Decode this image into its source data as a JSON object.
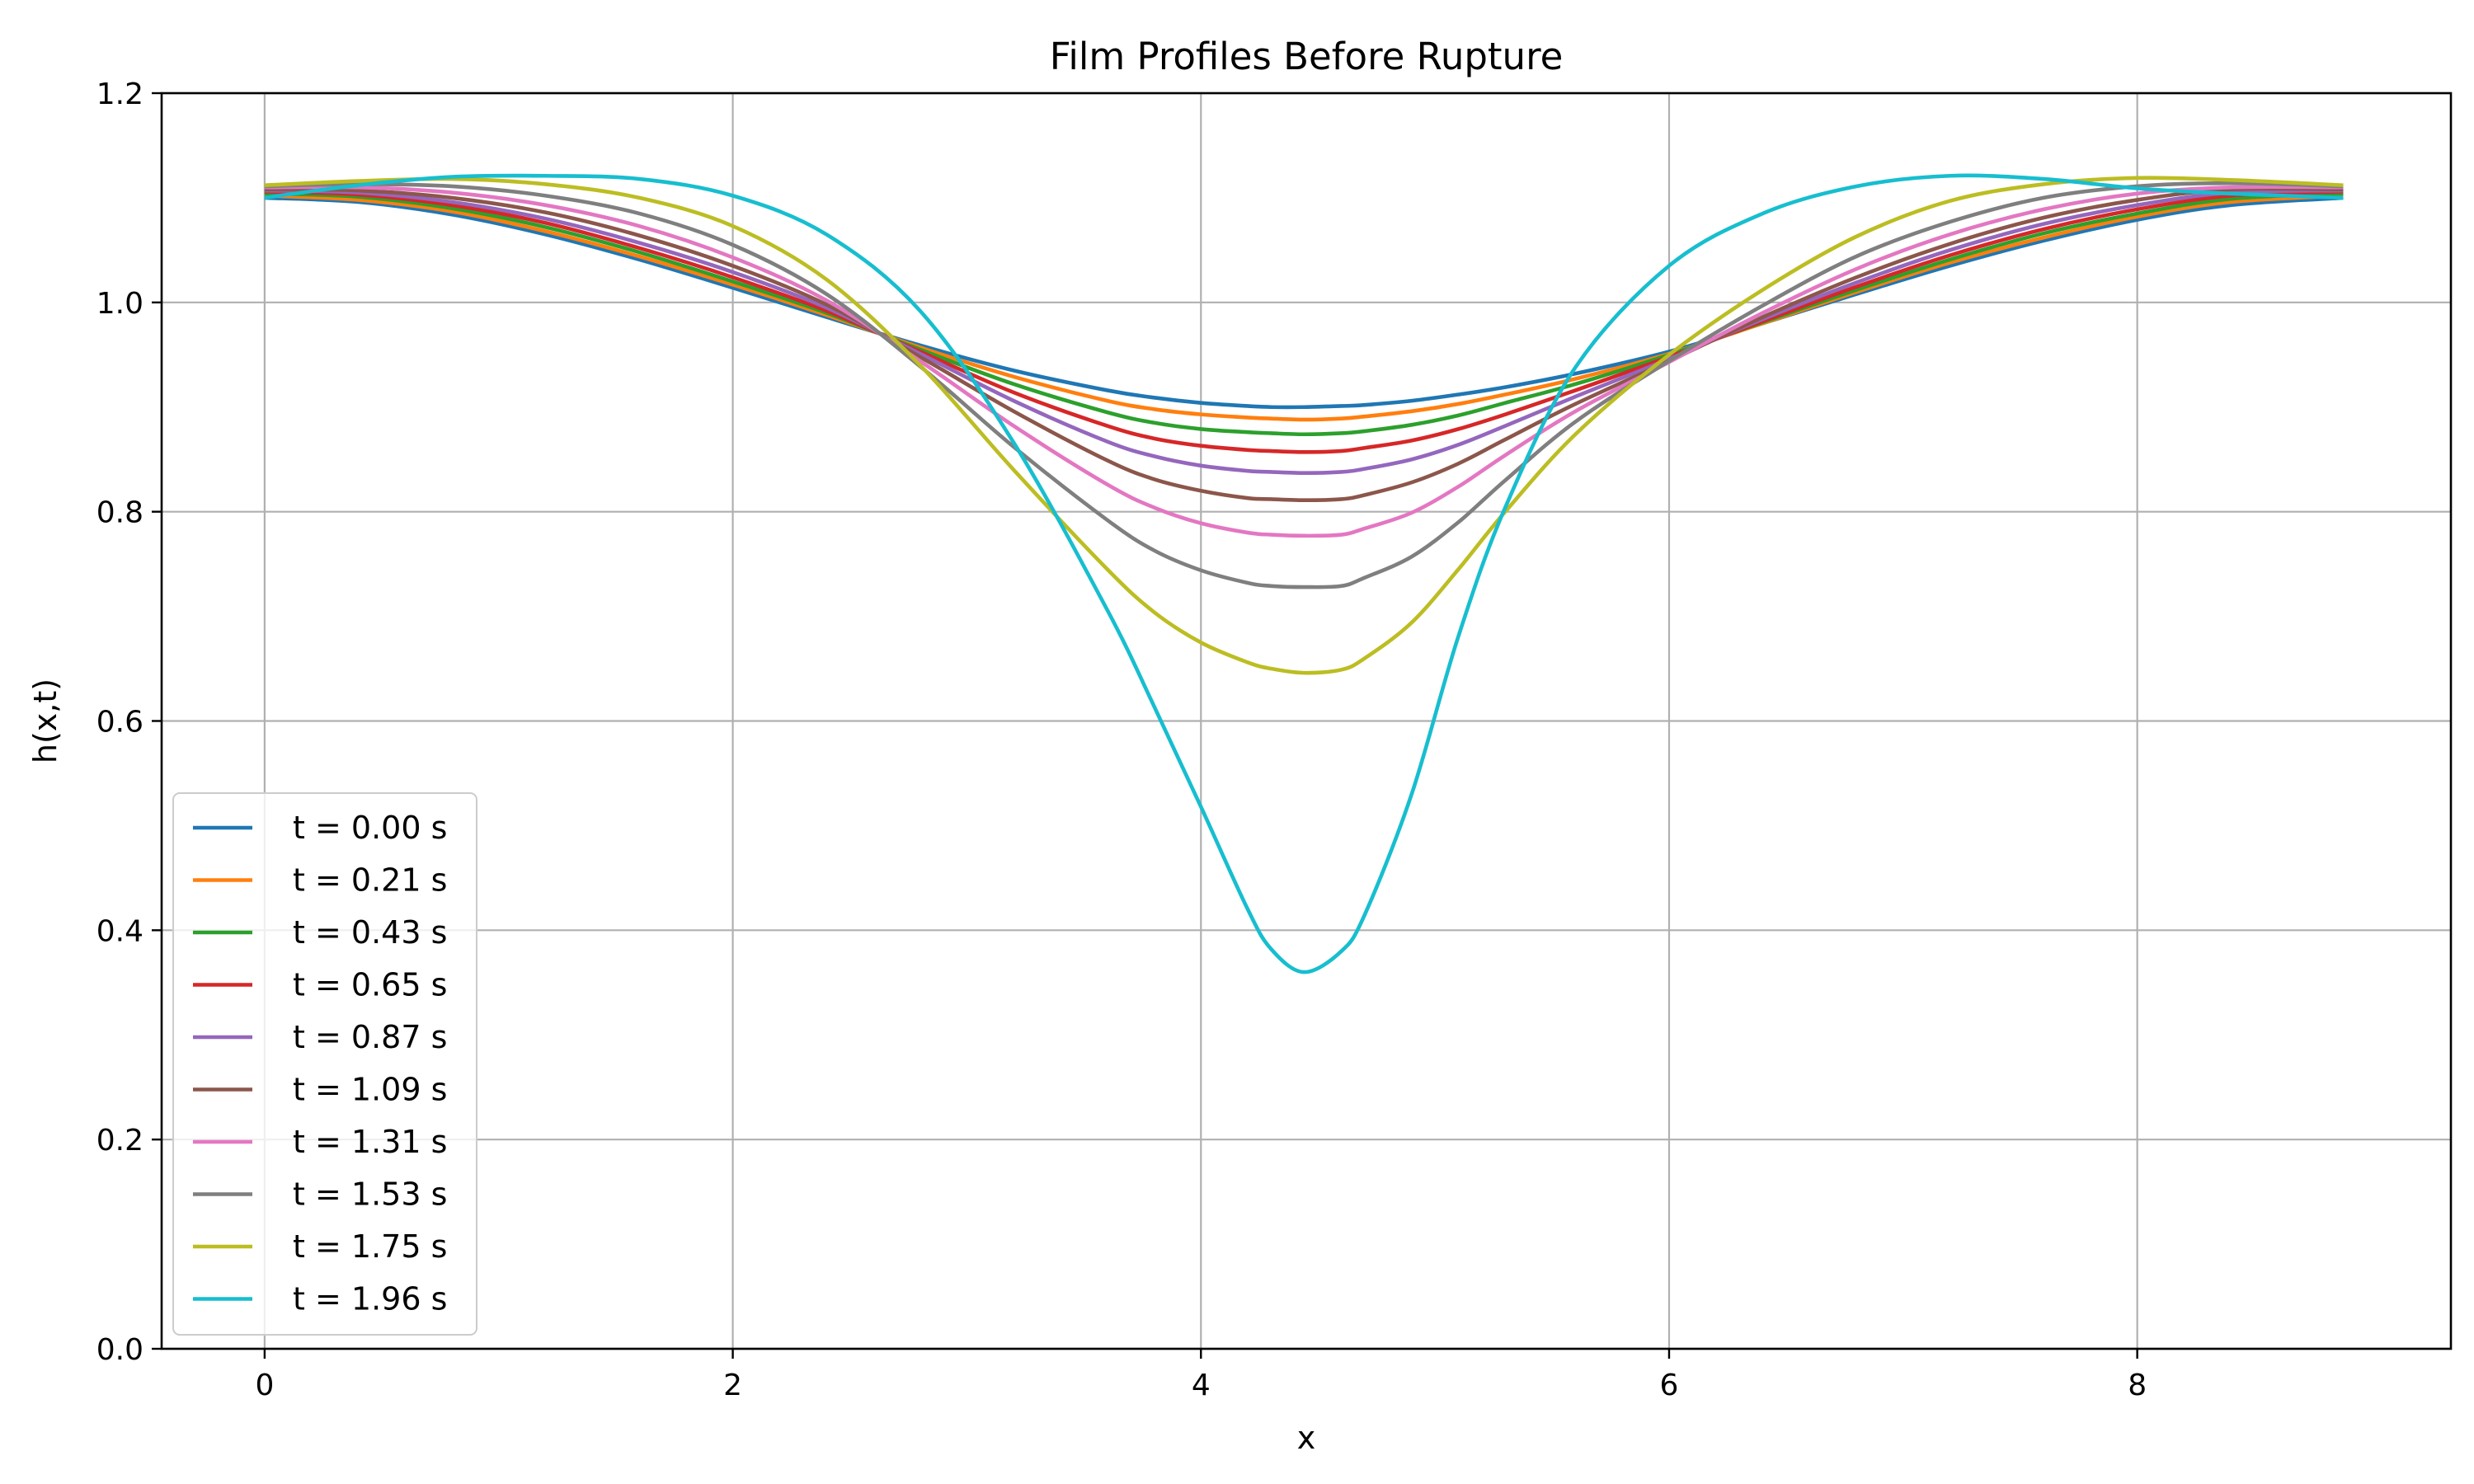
{
  "chart_data": {
    "type": "line",
    "title": "Film Profiles Before Rupture",
    "xlabel": "x",
    "ylabel": "h(x,t)",
    "xlim": [
      -0.44,
      9.34
    ],
    "ylim": [
      0.0,
      1.2
    ],
    "x_ticks": [
      0,
      2,
      4,
      6,
      8
    ],
    "y_ticks": [
      0.0,
      0.2,
      0.4,
      0.6,
      0.8,
      1.0,
      1.2
    ],
    "x_tick_labels": [
      "0",
      "2",
      "4",
      "6",
      "8"
    ],
    "y_tick_labels": [
      "0.0",
      "0.2",
      "0.4",
      "0.6",
      "0.8",
      "1.0",
      "1.2"
    ],
    "grid": true,
    "legend_position": "lower-left",
    "x": [
      0.0,
      0.4,
      0.8,
      1.2,
      1.6,
      2.0,
      2.4,
      2.8,
      3.2,
      3.6,
      3.8,
      4.0,
      4.2,
      4.3,
      4.44,
      4.6,
      4.7,
      4.9,
      5.1,
      5.3,
      5.6,
      6.0,
      6.4,
      6.8,
      7.2,
      7.6,
      8.0,
      8.4,
      8.88
    ],
    "series": [
      {
        "name": "t = 0.00 s",
        "color": "#1f77b4",
        "values": [
          1.1,
          1.096,
          1.084,
          1.065,
          1.041,
          1.014,
          0.986,
          0.959,
          0.935,
          0.916,
          0.909,
          0.904,
          0.901,
          0.9,
          0.9,
          0.901,
          0.902,
          0.906,
          0.912,
          0.919,
          0.932,
          0.953,
          0.98,
          1.008,
          1.035,
          1.059,
          1.079,
          1.093,
          1.1
        ]
      },
      {
        "name": "t = 0.21 s",
        "color": "#ff7f0e",
        "values": [
          1.102,
          1.098,
          1.087,
          1.068,
          1.044,
          1.017,
          0.988,
          0.957,
          0.929,
          0.906,
          0.898,
          0.893,
          0.89,
          0.889,
          0.888,
          0.889,
          0.891,
          0.896,
          0.903,
          0.912,
          0.927,
          0.951,
          0.98,
          1.01,
          1.038,
          1.062,
          1.082,
          1.096,
          1.102
        ]
      },
      {
        "name": "t = 0.43 s",
        "color": "#2ca02c",
        "values": [
          1.104,
          1.101,
          1.09,
          1.072,
          1.048,
          1.02,
          0.99,
          0.955,
          0.922,
          0.895,
          0.885,
          0.879,
          0.876,
          0.875,
          0.874,
          0.875,
          0.877,
          0.883,
          0.892,
          0.904,
          0.922,
          0.95,
          0.981,
          1.012,
          1.041,
          1.066,
          1.085,
          1.099,
          1.104
        ]
      },
      {
        "name": "t = 0.65 s",
        "color": "#d62728",
        "values": [
          1.106,
          1.103,
          1.093,
          1.076,
          1.052,
          1.024,
          0.992,
          0.953,
          0.914,
          0.882,
          0.87,
          0.863,
          0.859,
          0.858,
          0.857,
          0.858,
          0.861,
          0.868,
          0.879,
          0.893,
          0.916,
          0.948,
          0.982,
          1.015,
          1.045,
          1.07,
          1.089,
          1.102,
          1.106
        ]
      },
      {
        "name": "t = 0.87 s",
        "color": "#9467bd",
        "values": [
          1.107,
          1.105,
          1.096,
          1.08,
          1.057,
          1.029,
          0.995,
          0.951,
          0.906,
          0.867,
          0.853,
          0.844,
          0.839,
          0.838,
          0.837,
          0.838,
          0.841,
          0.85,
          0.864,
          0.882,
          0.91,
          0.946,
          0.984,
          1.019,
          1.05,
          1.075,
          1.093,
          1.105,
          1.107
        ]
      },
      {
        "name": "t = 1.09 s",
        "color": "#8c564b",
        "values": [
          1.108,
          1.107,
          1.1,
          1.086,
          1.064,
          1.035,
          0.998,
          0.948,
          0.896,
          0.849,
          0.831,
          0.82,
          0.813,
          0.812,
          0.811,
          0.812,
          0.816,
          0.828,
          0.846,
          0.869,
          0.903,
          0.944,
          0.986,
          1.024,
          1.056,
          1.081,
          1.098,
          1.108,
          1.108
        ]
      },
      {
        "name": "t = 1.31 s",
        "color": "#e377c2",
        "values": [
          1.11,
          1.11,
          1.105,
          1.093,
          1.073,
          1.043,
          1.002,
          0.944,
          0.882,
          0.826,
          0.804,
          0.789,
          0.78,
          0.778,
          0.777,
          0.778,
          0.784,
          0.799,
          0.824,
          0.854,
          0.896,
          0.943,
          0.99,
          1.032,
          1.065,
          1.089,
          1.104,
          1.11,
          1.11
        ]
      },
      {
        "name": "t = 1.53 s",
        "color": "#7f7f7f",
        "values": [
          1.111,
          1.113,
          1.111,
          1.102,
          1.085,
          1.055,
          1.008,
          0.939,
          0.862,
          0.792,
          0.763,
          0.744,
          0.732,
          0.729,
          0.728,
          0.729,
          0.737,
          0.757,
          0.79,
          0.83,
          0.886,
          0.944,
          0.997,
          1.044,
          1.077,
          1.1,
          1.111,
          1.114,
          1.111
        ]
      },
      {
        "name": "t = 1.75 s",
        "color": "#bcbd22",
        "values": [
          1.112,
          1.116,
          1.118,
          1.113,
          1.1,
          1.073,
          1.022,
          0.94,
          0.84,
          0.745,
          0.704,
          0.675,
          0.656,
          0.65,
          0.646,
          0.649,
          0.66,
          0.694,
          0.745,
          0.8,
          0.874,
          0.95,
          1.012,
          1.063,
          1.097,
          1.113,
          1.119,
          1.117,
          1.112
        ]
      },
      {
        "name": "t = 1.96 s",
        "color": "#17becf",
        "values": [
          1.1,
          1.112,
          1.12,
          1.121,
          1.118,
          1.102,
          1.065,
          0.992,
          0.866,
          0.706,
          0.614,
          0.518,
          0.42,
          0.382,
          0.36,
          0.38,
          0.415,
          0.53,
          0.681,
          0.804,
          0.938,
          1.035,
          1.085,
          1.111,
          1.121,
          1.118,
          1.109,
          1.104,
          1.1
        ]
      }
    ]
  }
}
